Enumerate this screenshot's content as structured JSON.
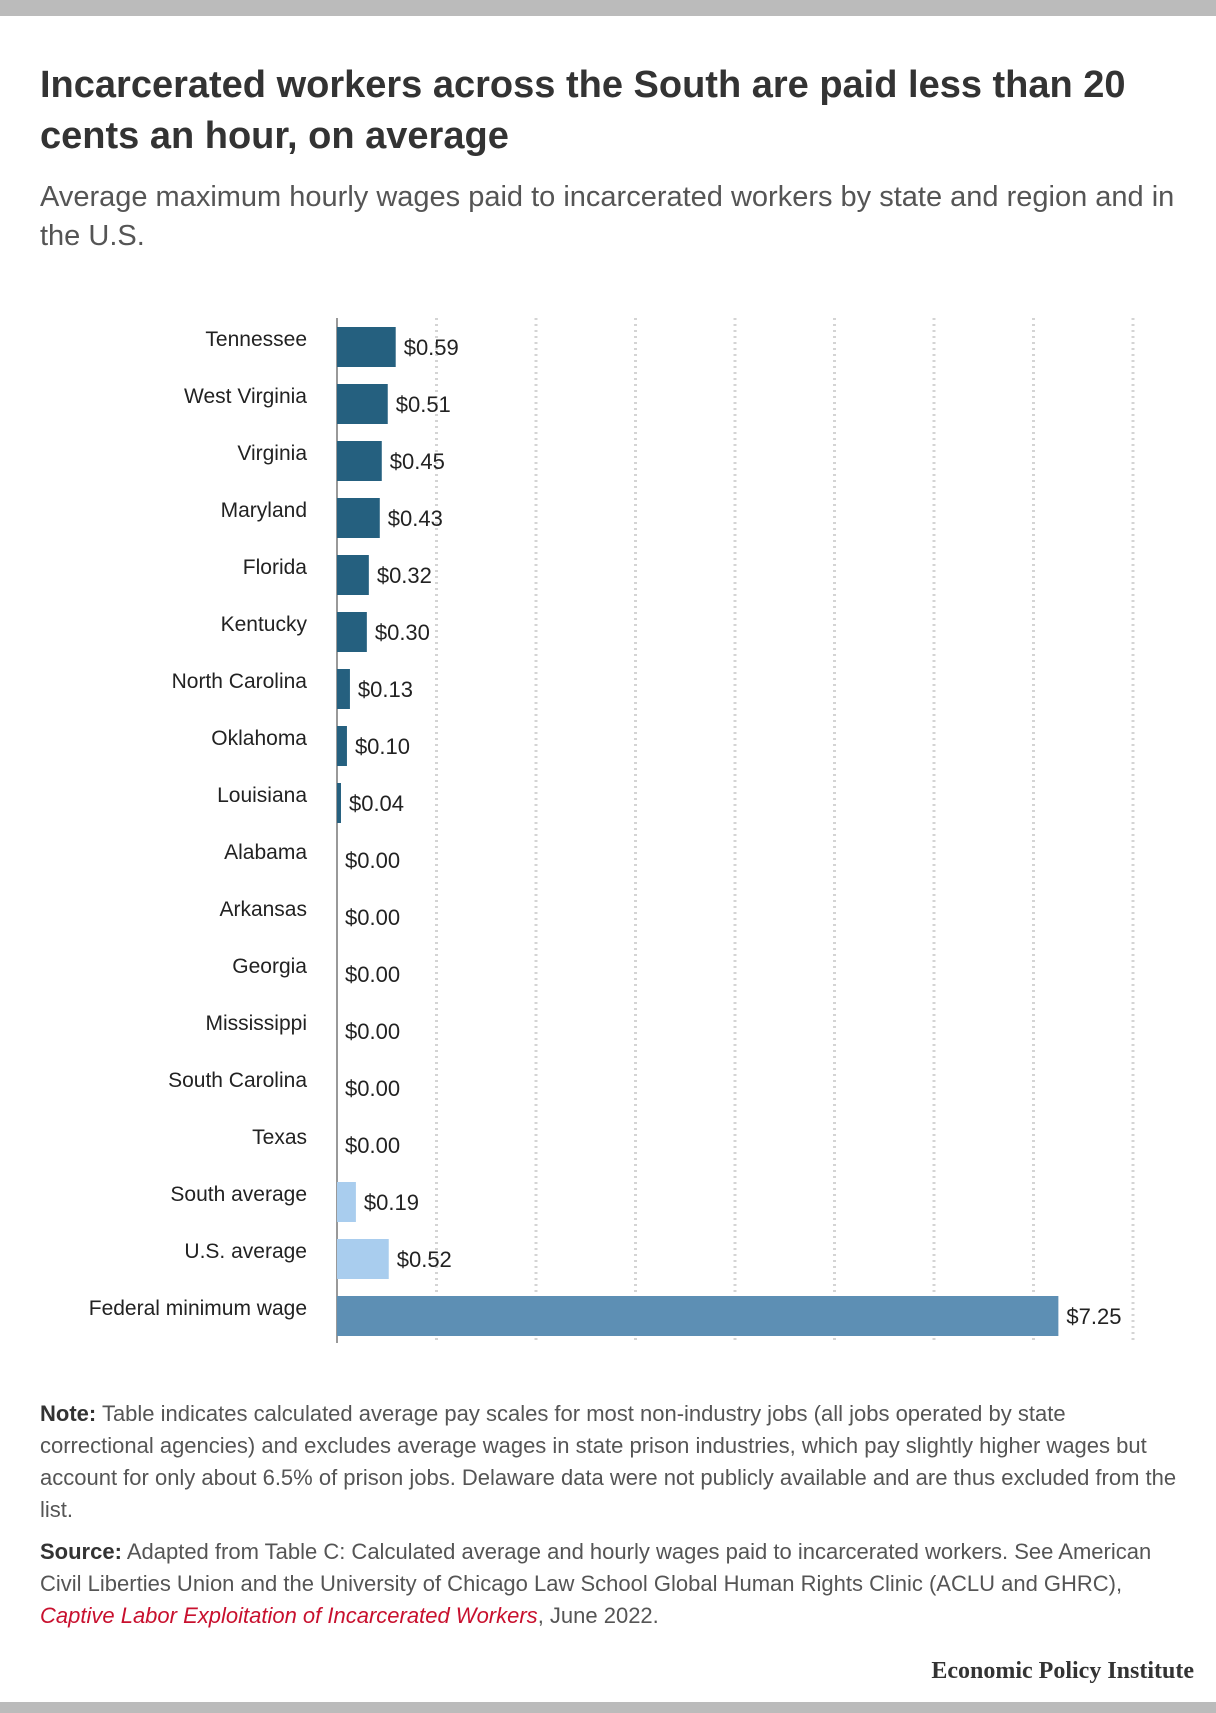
{
  "title": "Incarcerated workers across the South are paid less than 20 cents an hour, on average",
  "subtitle": "Average maximum hourly wages paid to incarcerated workers by state and region and in the U.S.",
  "chart_data": {
    "type": "bar",
    "orientation": "horizontal",
    "categories": [
      "Tennessee",
      "West Virginia",
      "Virginia",
      "Maryland",
      "Florida",
      "Kentucky",
      "North Carolina",
      "Oklahoma",
      "Louisiana",
      "Alabama",
      "Arkansas",
      "Georgia",
      "Mississippi",
      "South Carolina",
      "Texas",
      "South average",
      "U.S. average",
      "Federal minimum wage"
    ],
    "values": [
      0.59,
      0.51,
      0.45,
      0.43,
      0.32,
      0.3,
      0.13,
      0.1,
      0.04,
      0,
      0,
      0,
      0,
      0,
      0,
      0.19,
      0.52,
      7.25
    ],
    "value_labels": [
      "$0.59",
      "$0.51",
      "$0.45",
      "$0.43",
      "$0.32",
      "$0.30",
      "$0.13",
      "$0.10",
      "$0.04",
      "$0.00",
      "$0.00",
      "$0.00",
      "$0.00",
      "$0.00",
      "$0.00",
      "$0.19",
      "$0.52",
      "$7.25"
    ],
    "bar_groups": [
      "state",
      "state",
      "state",
      "state",
      "state",
      "state",
      "state",
      "state",
      "state",
      "state",
      "state",
      "state",
      "state",
      "state",
      "state",
      "average",
      "average",
      "minimum"
    ],
    "colors": {
      "state": "#25607f",
      "average": "#a9cdee",
      "minimum": "#5d8fb4",
      "gridline": "#d4d4d4",
      "axis": "#999999"
    },
    "xlim": [
      0,
      8
    ],
    "grid": "vertical dotted gridlines",
    "legend": "none"
  },
  "note": {
    "label": "Note:",
    "text": "Table indicates calculated average pay scales for most non-industry jobs (all jobs operated by state correctional agencies) and excludes average wages in state prison industries, which pay slightly higher wages but account for only about 6.5% of prison jobs. Delaware data were not publicly available and are thus excluded from the list."
  },
  "source": {
    "label": "Source:",
    "text_before": "Adapted from Table C: Calculated average and hourly wages paid to incarcerated workers. See American Civil Liberties Union and the University of Chicago Law School Global Human Rights Clinic (ACLU and GHRC),",
    "link_text": "Captive Labor Exploitation of Incarcerated Workers",
    "text_after": ", June 2022."
  },
  "brand": "Economic Policy Institute"
}
